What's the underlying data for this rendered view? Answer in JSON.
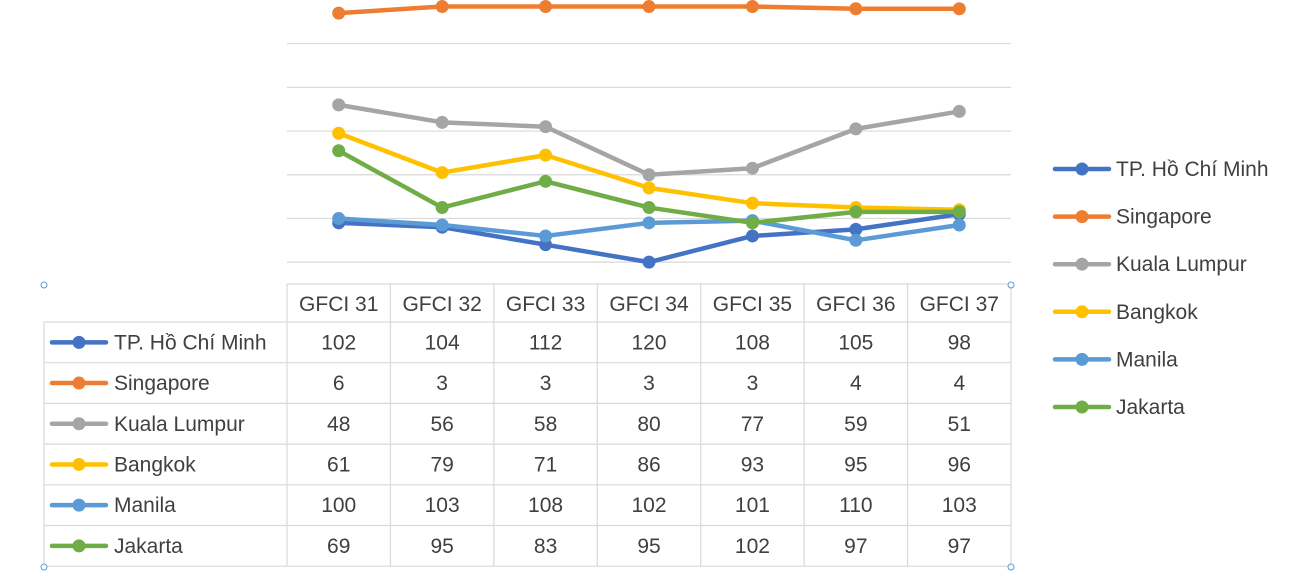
{
  "chart_data": {
    "type": "line",
    "title": "",
    "xlabel": "",
    "ylabel": "",
    "y_axis": "reversed",
    "ylim": [
      0,
      130
    ],
    "grid": true,
    "legend_position": "right",
    "data_table": true,
    "categories": [
      "GFCI 31",
      "GFCI 32",
      "GFCI 33",
      "GFCI 34",
      "GFCI 35",
      "GFCI 36",
      "GFCI 37"
    ],
    "series": [
      {
        "name": "TP. Hồ Chí Minh",
        "color": "#4472c4",
        "values": [
          102,
          104,
          112,
          120,
          108,
          105,
          98
        ]
      },
      {
        "name": "Singapore",
        "color": "#ed7d31",
        "values": [
          6,
          3,
          3,
          3,
          3,
          4,
          4
        ]
      },
      {
        "name": "Kuala Lumpur",
        "color": "#a5a5a5",
        "values": [
          48,
          56,
          58,
          80,
          77,
          59,
          51
        ]
      },
      {
        "name": "Bangkok",
        "color": "#ffc000",
        "values": [
          61,
          79,
          71,
          86,
          93,
          95,
          96
        ]
      },
      {
        "name": "Manila",
        "color": "#5b9bd5",
        "values": [
          100,
          103,
          108,
          102,
          101,
          110,
          103
        ]
      },
      {
        "name": "Jakarta",
        "color": "#70ad47",
        "values": [
          69,
          95,
          83,
          95,
          102,
          97,
          97
        ]
      }
    ]
  }
}
